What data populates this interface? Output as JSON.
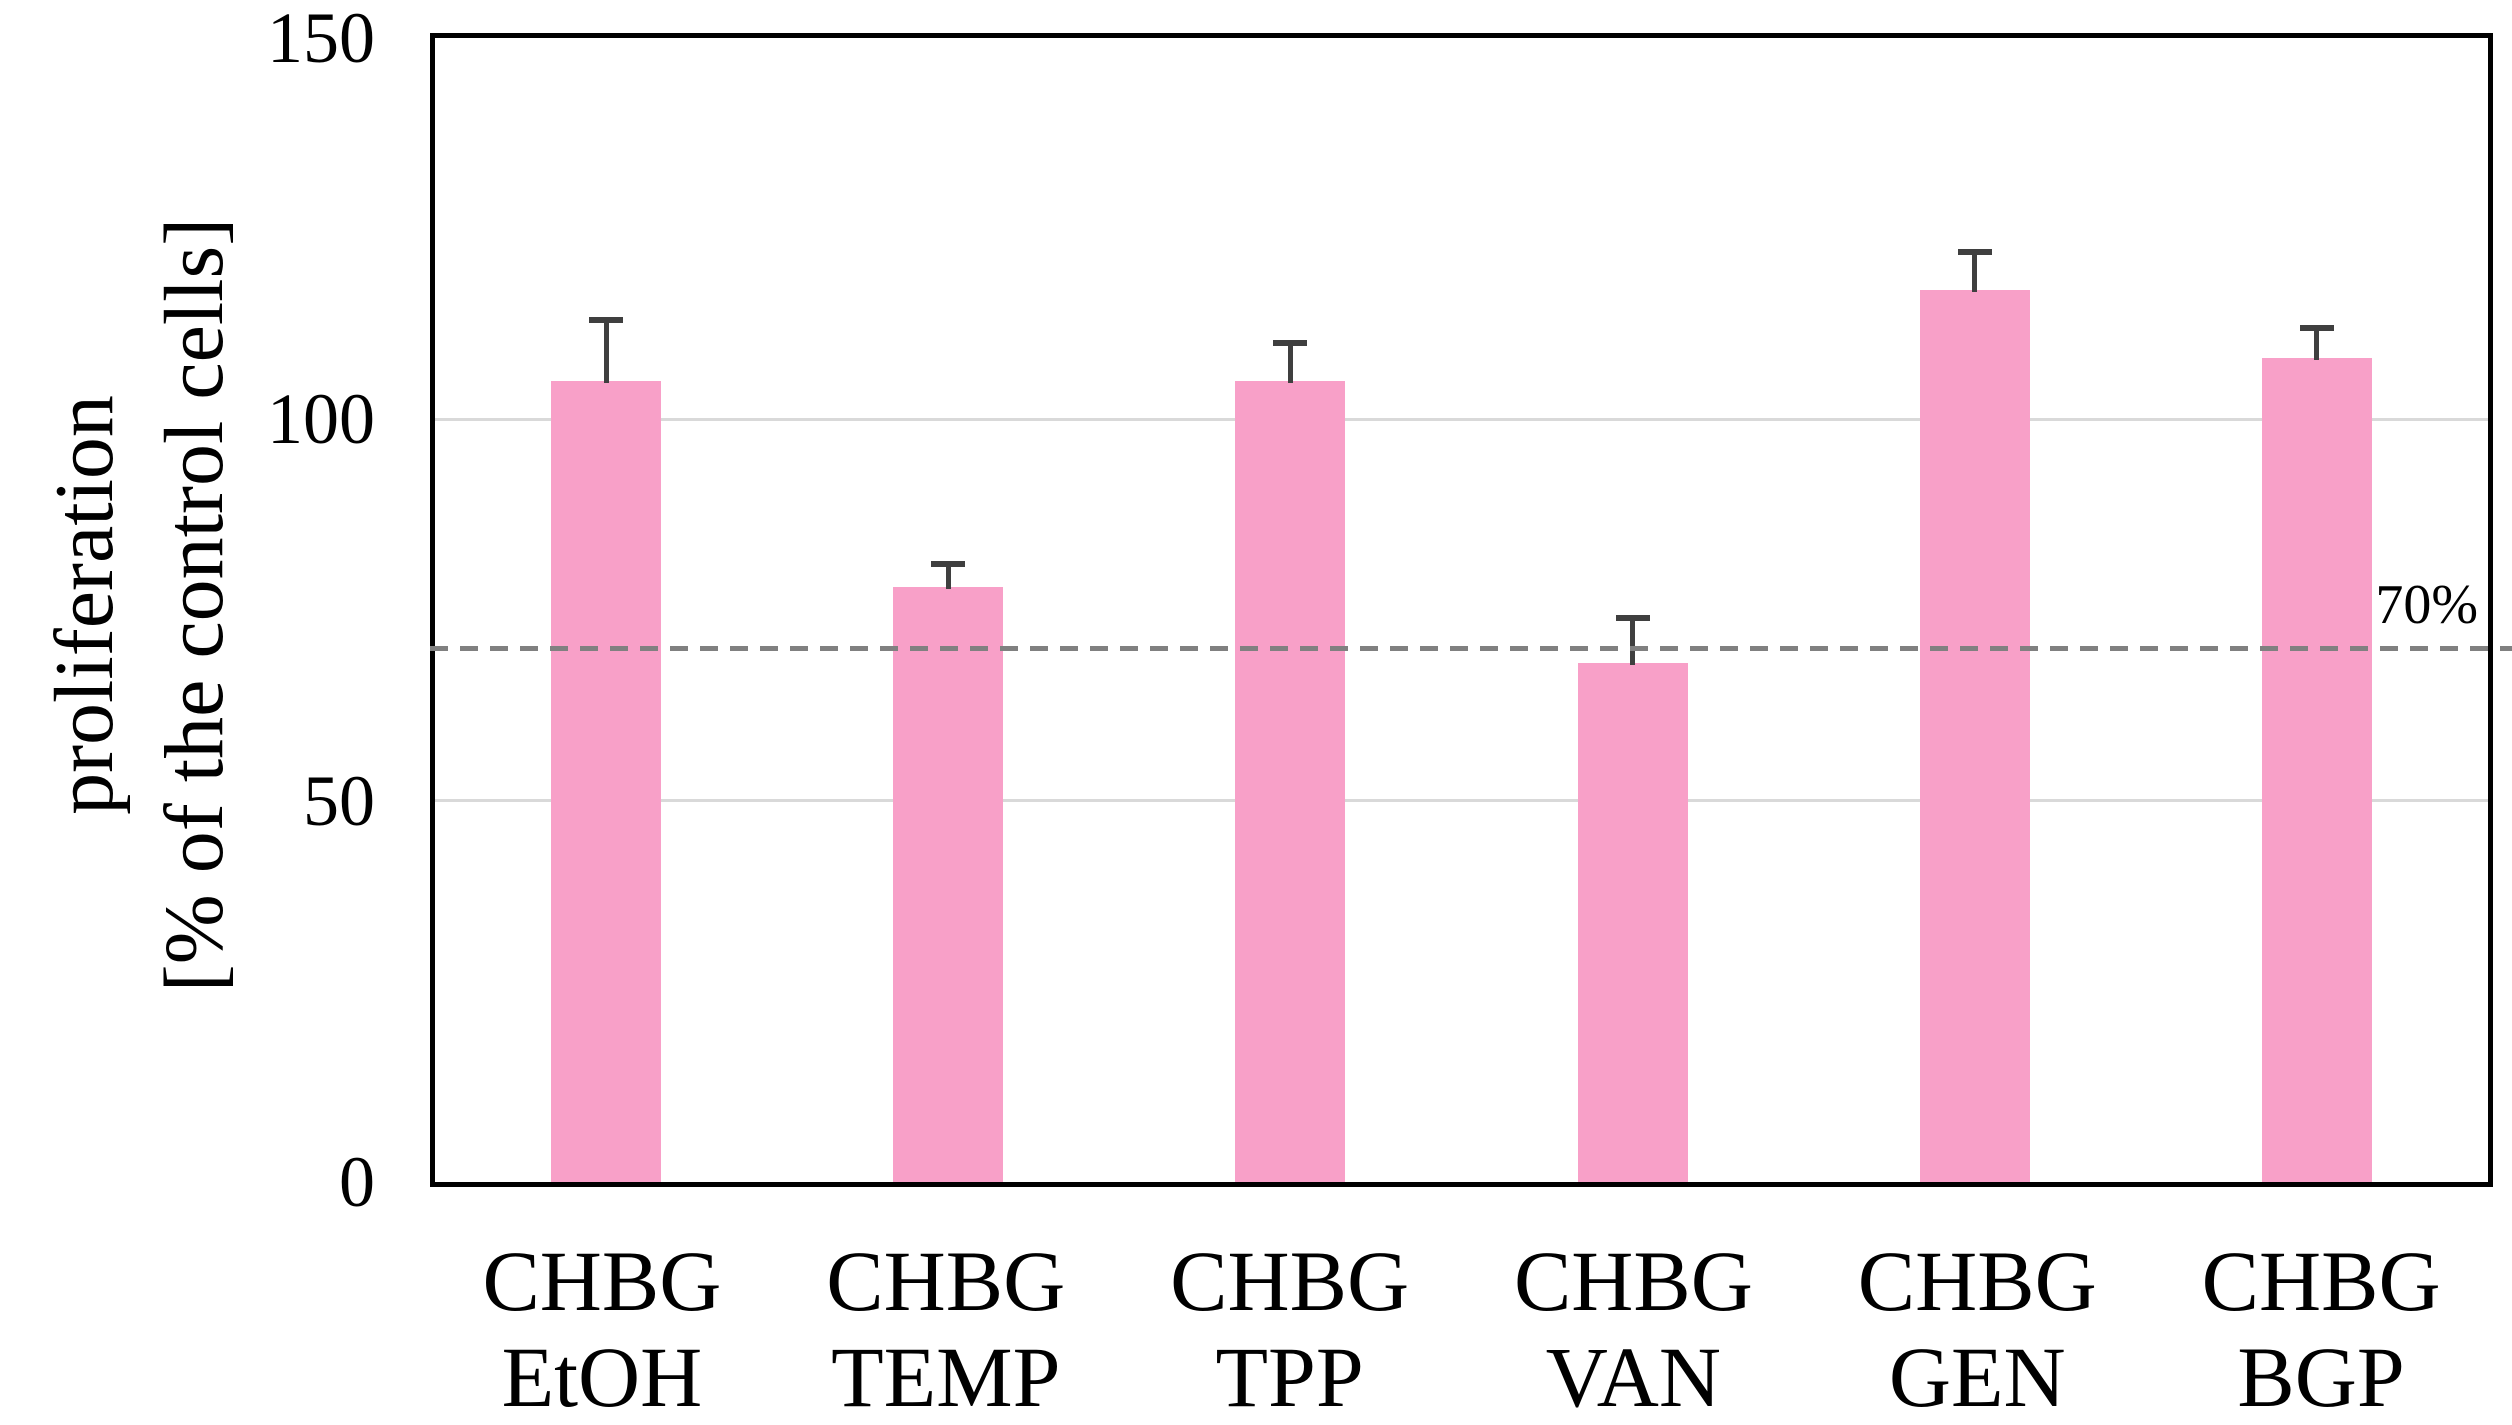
{
  "chart_data": {
    "type": "bar",
    "title": "",
    "xlabel": "",
    "ylabel": "proliferation [% of the control cells]",
    "ylabel_lines": [
      "proliferation",
      "[% of the control cells]"
    ],
    "categories": [
      "CHBG EtOH",
      "CHBG TEMP",
      "CHBG TPP",
      "CHBG VAN",
      "CHBG GEN",
      "CHBG BGP"
    ],
    "category_lines": [
      [
        "CHBG",
        "EtOH"
      ],
      [
        "CHBG",
        "TEMP"
      ],
      [
        "CHBG",
        "TPP"
      ],
      [
        "CHBG",
        "VAN"
      ],
      [
        "CHBG",
        "GEN"
      ],
      [
        "CHBG",
        "BGP"
      ]
    ],
    "values": [
      105,
      78,
      105,
      68,
      117,
      108
    ],
    "error_bars_plus": [
      8,
      3,
      5,
      6,
      5,
      4
    ],
    "ylim": [
      0,
      150
    ],
    "yticks": [
      0,
      50,
      100,
      150
    ],
    "gridlines_y": [
      50,
      100
    ],
    "grid": "horizontal",
    "legend": "none",
    "reference_line": {
      "value": 70,
      "label": "70%",
      "style": "dashed"
    },
    "colors": {
      "bar": "#F8A0C8",
      "error_bar": "#3F3F3F",
      "gridline": "#D9D9D9",
      "reference_line": "#808080",
      "axis": "#000000",
      "text": "#000000"
    }
  }
}
